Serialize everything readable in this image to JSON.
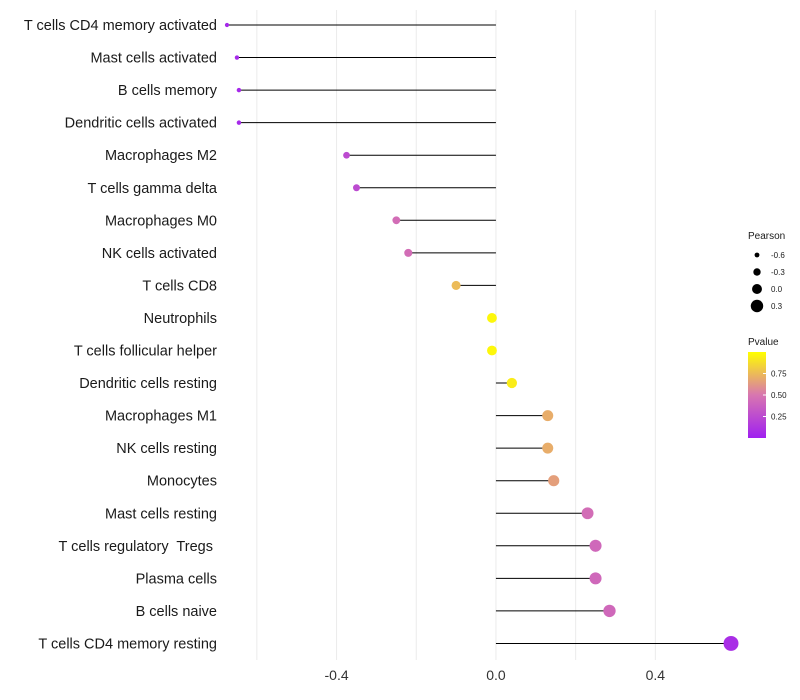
{
  "chart_data": {
    "type": "lollipop",
    "categories": [
      "T cells CD4 memory activated",
      "Mast cells activated",
      "B cells memory",
      "Dendritic cells activated",
      "Macrophages M2",
      "T cells gamma delta",
      "Macrophages M0",
      "NK cells activated",
      "T cells CD8",
      "Neutrophils",
      "T cells follicular helper",
      "Dendritic cells resting",
      "Macrophages M1",
      "NK cells resting",
      "Monocytes",
      "Mast cells resting",
      "T cells regulatory  Tregs ",
      "Plasma cells",
      "B cells naive",
      "T cells CD4 memory resting"
    ],
    "values": [
      -0.675,
      -0.65,
      -0.645,
      -0.645,
      -0.375,
      -0.35,
      -0.25,
      -0.22,
      -0.1,
      -0.01,
      -0.01,
      0.04,
      0.13,
      0.13,
      0.145,
      0.23,
      0.25,
      0.25,
      0.285,
      0.59
    ],
    "pvalues": [
      0.05,
      0.05,
      0.05,
      0.05,
      0.25,
      0.25,
      0.45,
      0.45,
      0.75,
      0.97,
      0.97,
      0.93,
      0.7,
      0.7,
      0.65,
      0.45,
      0.42,
      0.42,
      0.42,
      0.08
    ],
    "x_ticks": [
      -0.4,
      0.0,
      0.4
    ],
    "x_tick_labels": [
      "-0.4",
      "0.0",
      "0.4"
    ],
    "xlim": [
      -0.68,
      0.6
    ],
    "title": "",
    "xlabel": "",
    "ylabel": "",
    "grid": true,
    "legend": {
      "placement": "right",
      "size_title": "Pearson",
      "size_entries": [
        {
          "label": "-0.6",
          "value": -0.6
        },
        {
          "label": "-0.3",
          "value": -0.3
        },
        {
          "label": "0.0",
          "value": 0.0
        },
        {
          "label": "0.3",
          "value": 0.3
        }
      ],
      "color_title": "Pvalue",
      "color_entries": [
        {
          "label": "0.75",
          "value": 0.75
        },
        {
          "label": "0.50",
          "value": 0.5
        },
        {
          "label": "0.25",
          "value": 0.25
        }
      ],
      "color_low": "#a020f0",
      "color_mid": "#d876b0",
      "color_high": "#ffff00",
      "pvalue_range": [
        0.0,
        1.0
      ]
    },
    "colors": {
      "segment": "#000000",
      "grid": "#ebebeb"
    }
  }
}
